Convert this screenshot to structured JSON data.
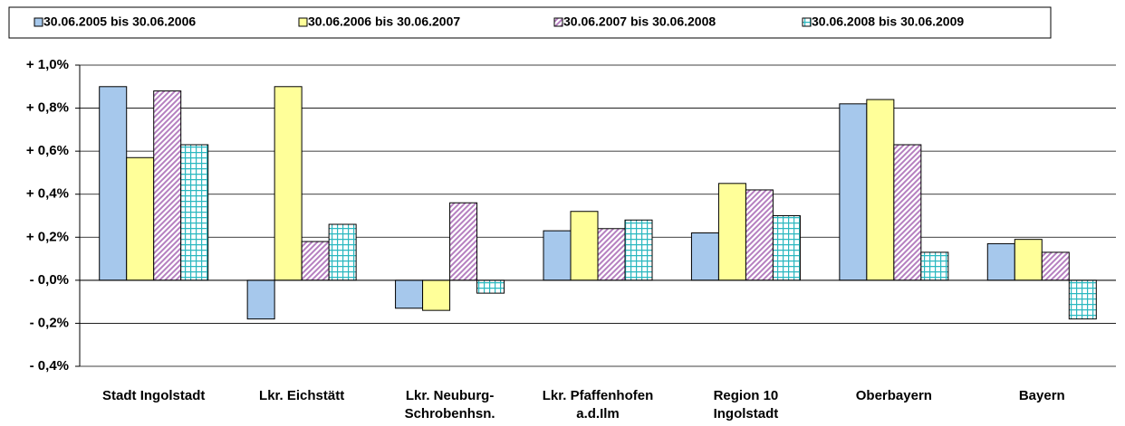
{
  "chart_data": {
    "type": "bar",
    "categories": [
      "Stadt Ingolstadt",
      "Lkr. Eichstätt",
      "Lkr. Neuburg-\nSchrobenhsn.",
      "Lkr. Pfaffenhofen\na.d.Ilm",
      "Region 10\nIngolstadt",
      "Oberbayern",
      "Bayern"
    ],
    "series": [
      {
        "name": "30.06.2005 bis 30.06.2006",
        "color": "#a6c8ec",
        "pattern": "solid",
        "values": [
          0.9,
          -0.18,
          -0.13,
          0.23,
          0.22,
          0.82,
          0.17
        ]
      },
      {
        "name": "30.06.2006 bis 30.06.2007",
        "color": "#ffff99",
        "pattern": "solid",
        "values": [
          0.57,
          0.9,
          -0.14,
          0.32,
          0.45,
          0.84,
          0.19
        ]
      },
      {
        "name": "30.06.2007 bis 30.06.2008",
        "color": "#b57fc0",
        "pattern": "diagonal",
        "values": [
          0.88,
          0.18,
          0.36,
          0.24,
          0.42,
          0.63,
          0.13
        ]
      },
      {
        "name": "30.06.2008 bis 30.06.2009",
        "color": "#2ab8c0",
        "pattern": "grid",
        "values": [
          0.63,
          0.26,
          -0.06,
          0.28,
          0.3,
          0.13,
          -0.18
        ]
      }
    ],
    "ylim": [
      -0.4,
      1.0
    ],
    "yticks": [
      {
        "value": -0.4,
        "label": "- 0,4%"
      },
      {
        "value": -0.2,
        "label": "- 0,2%"
      },
      {
        "value": 0,
        "label": "- 0,0%"
      },
      {
        "value": 0.2,
        "label": "+ 0,2%"
      },
      {
        "value": 0.4,
        "label": "+ 0,4%"
      },
      {
        "value": 0.6,
        "label": "+ 0,6%"
      },
      {
        "value": 0.8,
        "label": "+ 0,8%"
      },
      {
        "value": 1.0,
        "label": "+ 1,0%"
      }
    ],
    "grid": true,
    "legend": "top"
  }
}
